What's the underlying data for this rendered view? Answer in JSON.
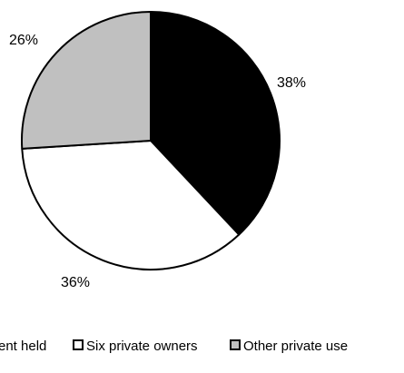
{
  "chart_data": {
    "type": "pie",
    "title": "",
    "start_angle_deg": 0,
    "direction": "clockwise",
    "slices": [
      {
        "name": "...ent held",
        "value": 38,
        "label": "38%",
        "color": "#000000"
      },
      {
        "name": "Six private owners",
        "value": 36,
        "label": "36%",
        "color": "#ffffff"
      },
      {
        "name": "Other private use",
        "value": 26,
        "label": "26%",
        "color": "#c0c0c0"
      }
    ],
    "legend": {
      "position": "bottom",
      "entries": [
        {
          "label": "ent held",
          "color": "#000000"
        },
        {
          "label": "Six private owners",
          "color": "#ffffff"
        },
        {
          "label": "Other private use",
          "color": "#c0c0c0"
        }
      ]
    },
    "outline_color": "#000000"
  }
}
